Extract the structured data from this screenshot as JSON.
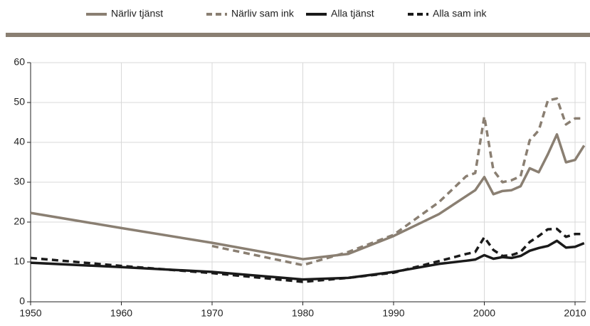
{
  "chart_data": {
    "type": "line",
    "x": [
      1950,
      1960,
      1970,
      1980,
      1985,
      1990,
      1995,
      1998,
      1999,
      2000,
      2001,
      2002,
      2003,
      2004,
      2005,
      2006,
      2007,
      2008,
      2009,
      2010,
      2011
    ],
    "series": [
      {
        "name": "Närliv tjänst",
        "color": "#8a7f72",
        "dashed": false,
        "values": [
          22.3,
          18.5,
          14.8,
          10.7,
          12,
          16.5,
          22,
          26.5,
          28,
          31.3,
          27,
          27.8,
          28,
          29,
          33.5,
          32.5,
          37,
          42,
          35,
          35.6,
          39.2
        ]
      },
      {
        "name": "Närliv sam ink",
        "color": "#8a7f72",
        "dashed": true,
        "values": [
          null,
          null,
          14,
          9.2,
          12.5,
          16.8,
          25,
          31.5,
          32.3,
          46.5,
          33,
          30,
          30.5,
          31.5,
          40.5,
          43,
          50.5,
          51,
          44.5,
          46,
          46
        ]
      },
      {
        "name": "Alla tjänst",
        "color": "#1a1a1a",
        "dashed": false,
        "values": [
          9.8,
          8.7,
          7.5,
          5.6,
          6,
          7.5,
          9.5,
          10.3,
          10.6,
          11.7,
          10.8,
          11.2,
          11,
          11.5,
          12.8,
          13.5,
          14,
          15.3,
          13.6,
          13.8,
          14.7
        ]
      },
      {
        "name": "Alla sam ink",
        "color": "#1a1a1a",
        "dashed": true,
        "values": [
          11,
          9,
          7.2,
          5,
          6,
          7.3,
          10.2,
          12,
          12.5,
          16.2,
          13,
          11.5,
          11.7,
          12.5,
          15,
          16.5,
          18.2,
          18.3,
          16.3,
          17,
          17
        ]
      }
    ],
    "xlim": [
      1950,
      2011
    ],
    "xticks": [
      1950,
      1960,
      1970,
      1980,
      1990,
      2000,
      2010
    ],
    "ylim": [
      0,
      60
    ],
    "yticks": [
      0,
      10,
      20,
      30,
      40,
      50,
      60
    ],
    "grid": true,
    "legend": "top"
  }
}
